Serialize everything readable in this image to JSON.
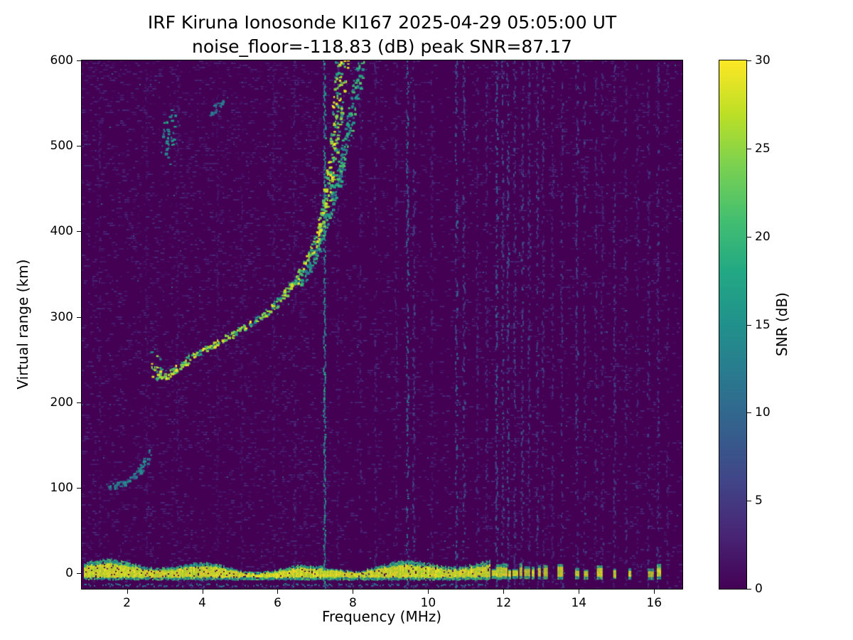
{
  "colors": {
    "figure_background": "#ffffff",
    "axis": "#000000",
    "text": "#000000",
    "heatmap_background": "#440154"
  },
  "chart_data": {
    "type": "heatmap",
    "title": "IRF Kiruna Ionosonde KI167 2025-04-29 05:05:00  UT",
    "subtitle": "noise_floor=-118.83 (dB) peak SNR=87.17",
    "station": "IRF Kiruna Ionosonde KI167",
    "timestamp_ut": "2025-04-29 05:05:00 UT",
    "noise_floor_db": -118.83,
    "peak_snr_db": 87.17,
    "xlabel": "Frequency (MHz)",
    "ylabel": "Virtual range (km)",
    "colorbar_label": "SNR (dB)",
    "xlim": [
      0.8,
      16.75
    ],
    "ylim": [
      -18,
      600
    ],
    "clim": [
      0,
      30
    ],
    "xticks": [
      2,
      4,
      6,
      8,
      10,
      12,
      14,
      16
    ],
    "yticks": [
      0,
      100,
      200,
      300,
      400,
      500,
      600
    ],
    "colorbar_ticks": [
      0,
      5,
      10,
      15,
      20,
      25,
      30
    ],
    "grid": false,
    "colormap": "viridis",
    "colormap_stops": [
      [
        0.0,
        "#440154"
      ],
      [
        0.1,
        "#482475"
      ],
      [
        0.2,
        "#414487"
      ],
      [
        0.3,
        "#355f8d"
      ],
      [
        0.4,
        "#2a788e"
      ],
      [
        0.5,
        "#21918c"
      ],
      [
        0.6,
        "#22a884"
      ],
      [
        0.7,
        "#44bf70"
      ],
      [
        0.8,
        "#7ad151"
      ],
      [
        0.9,
        "#bddf26"
      ],
      [
        1.0,
        "#fde725"
      ]
    ],
    "features": {
      "ground_pulse": {
        "label": "transmitter ground pulse band",
        "km_center": 0,
        "f_start": 0.85,
        "f_end": 11.65,
        "snr_core": 30,
        "snr_edge": 14,
        "thickness_km_range": [
          8,
          20
        ]
      },
      "sub_band_line": {
        "label": "weak echo line below ground pulse",
        "km": -13,
        "f_start": 0.85,
        "f_end": 11.65,
        "snr": 12
      },
      "ground_pulse_dashes": {
        "label": "intermittent ground pulse above 11.7 MHz",
        "km_center": 0,
        "snr": 28,
        "frequencies": [
          11.75,
          11.88,
          12.02,
          12.16,
          12.3,
          12.46,
          12.62,
          12.78,
          12.95,
          13.1,
          13.5,
          13.95,
          14.18,
          14.55,
          14.95,
          15.35,
          15.9,
          16.12
        ]
      },
      "f_region_trace_o": {
        "label": "F-region echo trace (O-mode), foF2 near 7.7 MHz",
        "snr_range": [
          12,
          30
        ],
        "points": [
          [
            2.78,
            252
          ],
          [
            2.8,
            240
          ],
          [
            2.86,
            230
          ],
          [
            3.0,
            230
          ],
          [
            3.2,
            238
          ],
          [
            3.5,
            247
          ],
          [
            3.8,
            257
          ],
          [
            4.1,
            264
          ],
          [
            4.45,
            272
          ],
          [
            4.8,
            280
          ],
          [
            5.15,
            290
          ],
          [
            5.5,
            300
          ],
          [
            5.85,
            313
          ],
          [
            6.15,
            327
          ],
          [
            6.45,
            343
          ],
          [
            6.7,
            360
          ],
          [
            6.92,
            380
          ],
          [
            7.1,
            404
          ],
          [
            7.25,
            432
          ],
          [
            7.38,
            465
          ],
          [
            7.5,
            502
          ],
          [
            7.6,
            543
          ],
          [
            7.68,
            600
          ]
        ]
      },
      "f_region_trace_x": {
        "label": "F-region echo trace (X-mode), asymptote near 8.2 MHz",
        "snr_range": [
          8,
          22
        ],
        "points": [
          [
            6.55,
            338
          ],
          [
            6.8,
            356
          ],
          [
            7.0,
            376
          ],
          [
            7.2,
            400
          ],
          [
            7.4,
            430
          ],
          [
            7.6,
            465
          ],
          [
            7.78,
            502
          ],
          [
            7.95,
            540
          ],
          [
            8.1,
            575
          ],
          [
            8.2,
            600
          ]
        ]
      },
      "e_region_trace": {
        "label": "weak low-altitude echo 1.5-2.6 MHz",
        "snr_range": [
          6,
          16
        ],
        "points": [
          [
            1.5,
            102
          ],
          [
            1.72,
            104
          ],
          [
            1.95,
            108
          ],
          [
            2.15,
            114
          ],
          [
            2.32,
            121
          ],
          [
            2.48,
            131
          ],
          [
            2.58,
            142
          ]
        ]
      },
      "echo_dashes": [
        {
          "label": "high-range echo fragment near 3.1 MHz",
          "snr_range": [
            10,
            18
          ],
          "points": [
            [
              3.06,
              492
            ],
            [
              3.12,
              532
            ]
          ]
        },
        {
          "label": "high-range echo fragment near 4.4 MHz",
          "snr_range": [
            8,
            14
          ],
          "points": [
            [
              4.22,
              540
            ],
            [
              4.55,
              553
            ]
          ]
        }
      ],
      "rfi_streaks": [
        {
          "f": 1.28,
          "strength": 0.07
        },
        {
          "f": 2.52,
          "strength": 0.06
        },
        {
          "f": 3.35,
          "strength": 0.07
        },
        {
          "f": 4.4,
          "strength": 0.06
        },
        {
          "f": 5.05,
          "strength": 0.06
        },
        {
          "f": 5.9,
          "strength": 0.07
        },
        {
          "f": 6.45,
          "strength": 0.09
        },
        {
          "f": 7.25,
          "strength": 0.42
        },
        {
          "f": 7.6,
          "strength": 0.08
        },
        {
          "f": 8.2,
          "strength": 0.09
        },
        {
          "f": 8.6,
          "strength": 0.1
        },
        {
          "f": 9.15,
          "strength": 0.09
        },
        {
          "f": 9.45,
          "strength": 0.26
        },
        {
          "f": 9.62,
          "strength": 0.15
        },
        {
          "f": 10.1,
          "strength": 0.09
        },
        {
          "f": 10.75,
          "strength": 0.22
        },
        {
          "f": 10.95,
          "strength": 0.17
        },
        {
          "f": 11.3,
          "strength": 0.11
        },
        {
          "f": 11.55,
          "strength": 0.12
        },
        {
          "f": 11.82,
          "strength": 0.22
        },
        {
          "f": 11.98,
          "strength": 0.18
        },
        {
          "f": 12.12,
          "strength": 0.2
        },
        {
          "f": 12.3,
          "strength": 0.16
        },
        {
          "f": 12.5,
          "strength": 0.18
        },
        {
          "f": 12.68,
          "strength": 0.15
        },
        {
          "f": 12.9,
          "strength": 0.16
        },
        {
          "f": 13.05,
          "strength": 0.13
        },
        {
          "f": 13.3,
          "strength": 0.11
        },
        {
          "f": 13.55,
          "strength": 0.14
        },
        {
          "f": 13.95,
          "strength": 0.16
        },
        {
          "f": 14.15,
          "strength": 0.14
        },
        {
          "f": 14.45,
          "strength": 0.12
        },
        {
          "f": 14.62,
          "strength": 0.11
        },
        {
          "f": 14.95,
          "strength": 0.14
        },
        {
          "f": 15.25,
          "strength": 0.11
        },
        {
          "f": 15.55,
          "strength": 0.1
        },
        {
          "f": 15.85,
          "strength": 0.12
        },
        {
          "f": 16.1,
          "strength": 0.14
        },
        {
          "f": 16.35,
          "strength": 0.09
        }
      ]
    }
  }
}
